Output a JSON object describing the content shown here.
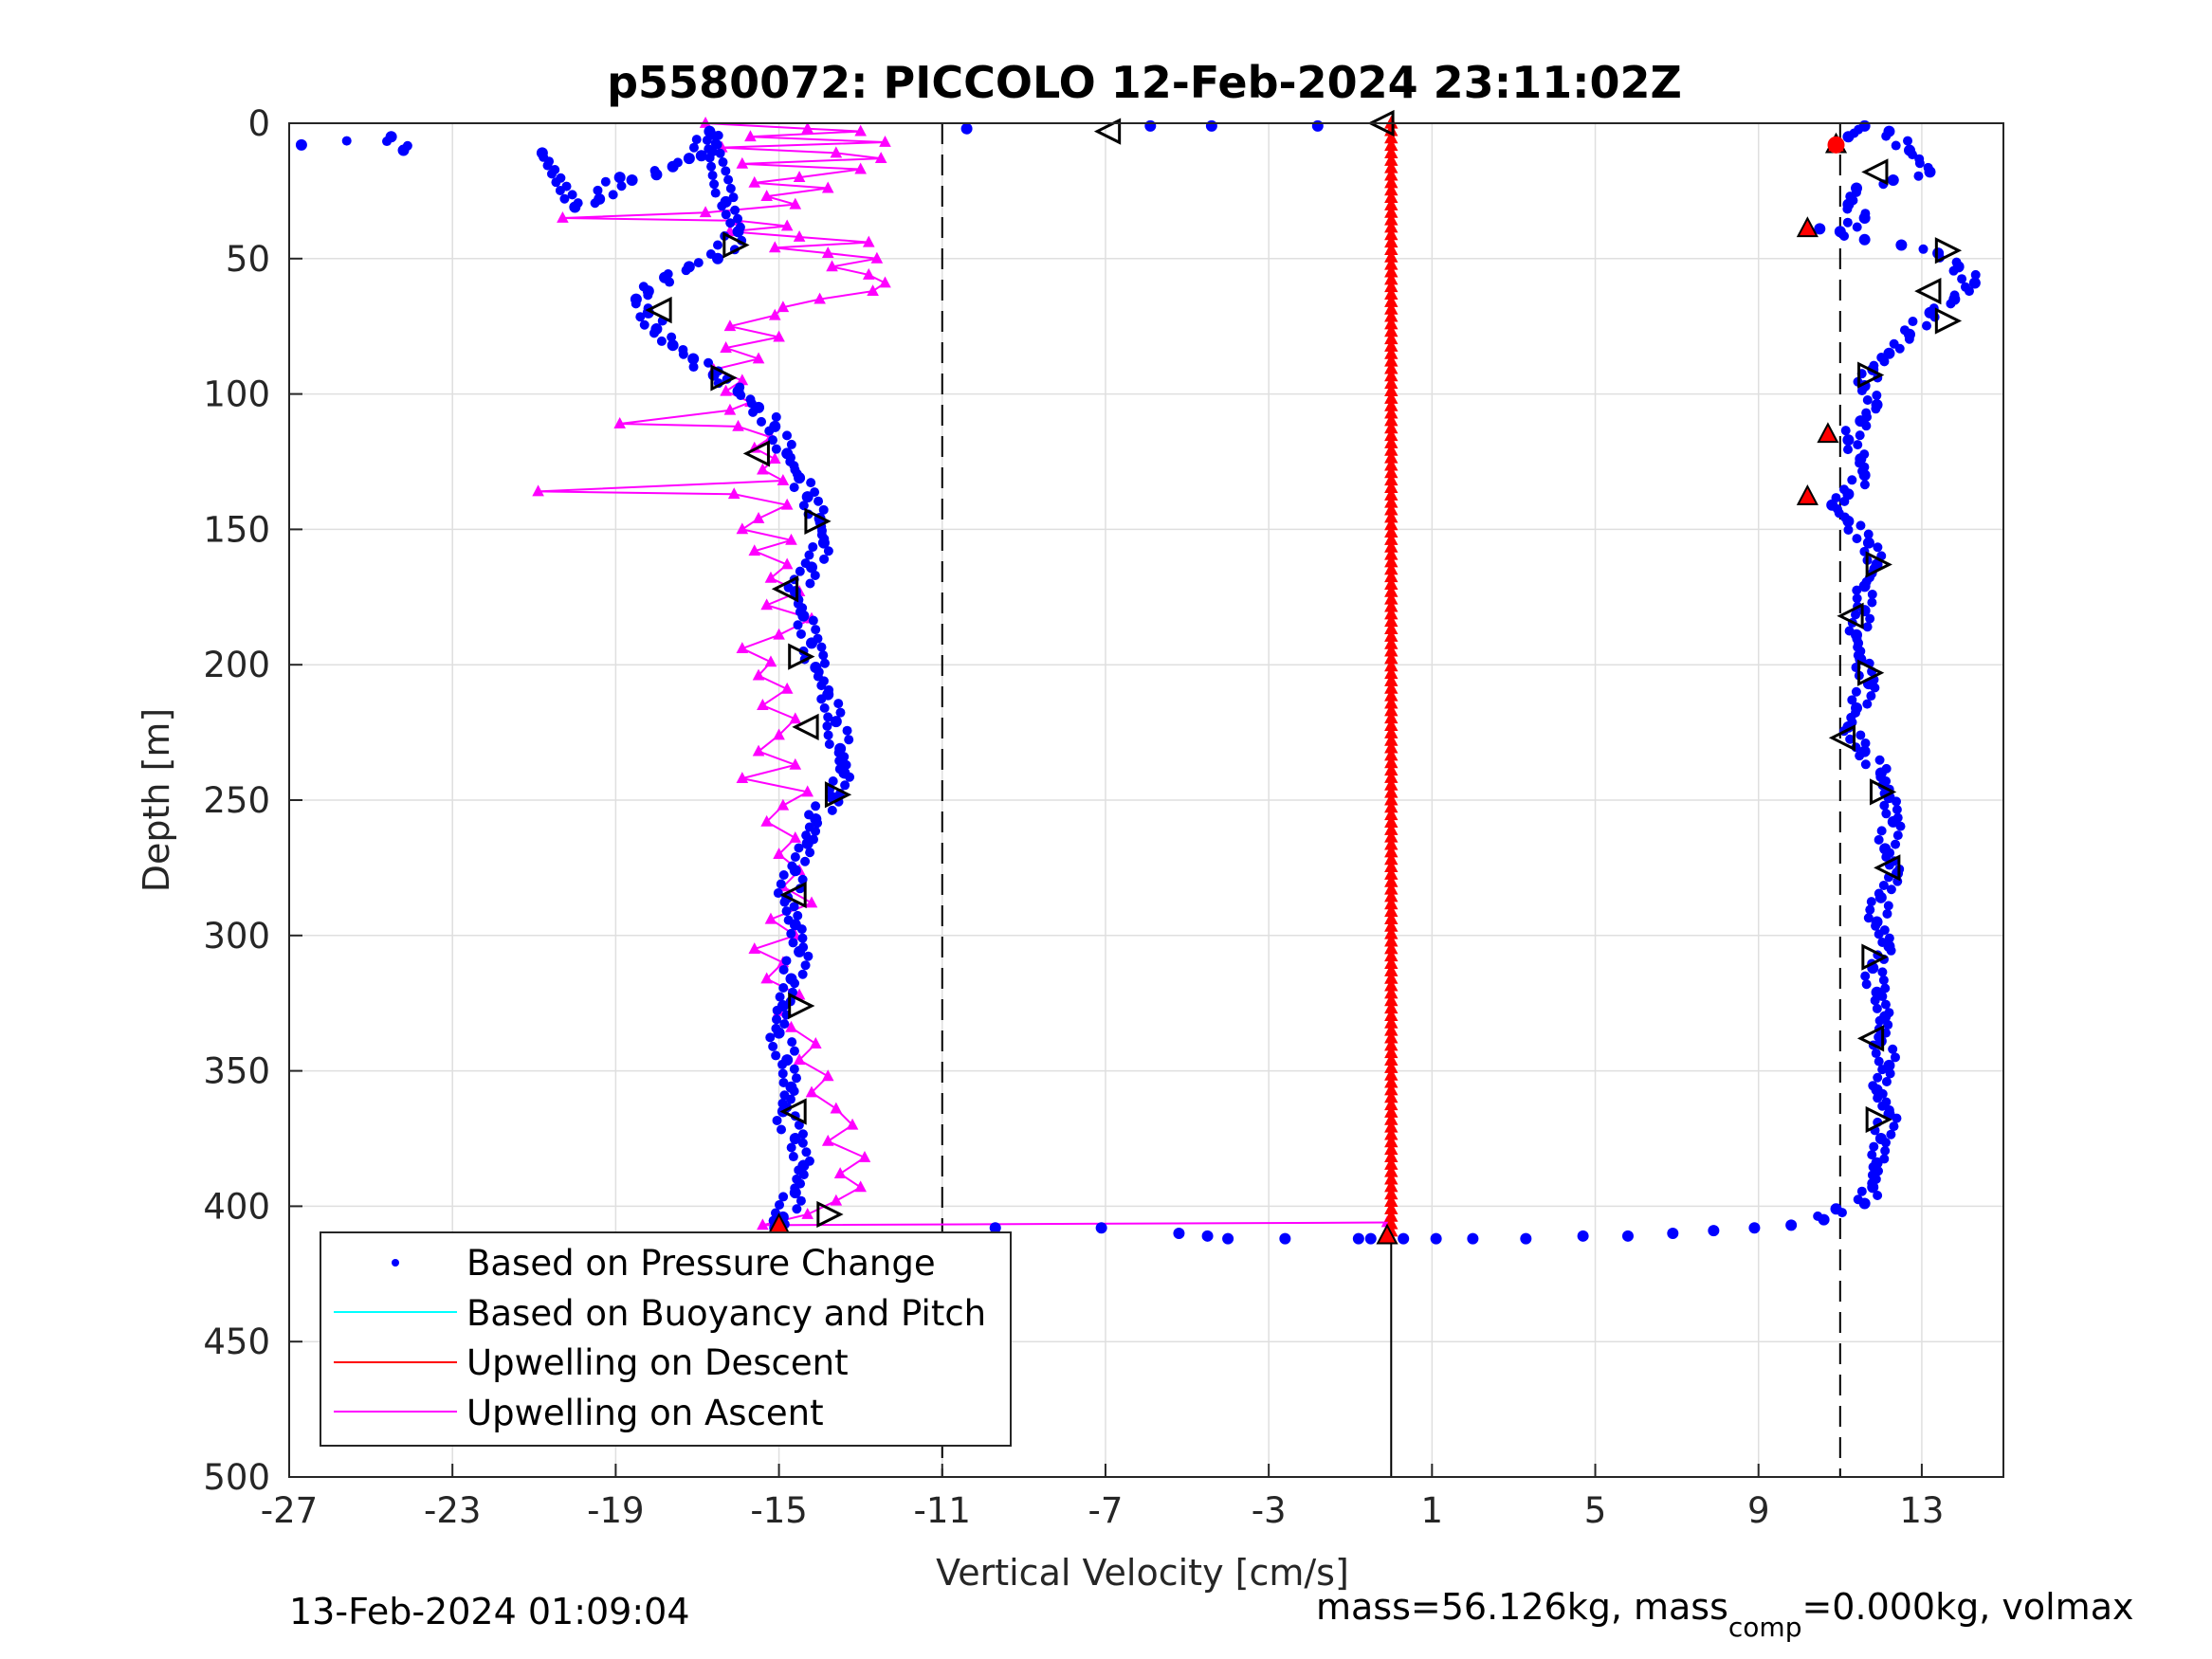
{
  "chart_data": {
    "type": "scatter",
    "title": "p5580072: PICCOLO 12-Feb-2024 23:11:02Z",
    "xlabel": "Vertical Velocity [cm/s]",
    "ylabel": "Depth [m]",
    "xlim": [
      -27,
      15
    ],
    "ylim": [
      0,
      500
    ],
    "y_reversed": true,
    "xticks": [
      "-27",
      "-23",
      "-19",
      "-15",
      "-11",
      "-7",
      "-3",
      "1",
      "5",
      "9",
      "13"
    ],
    "xtick_values": [
      -27,
      -23,
      -19,
      -15,
      -11,
      -7,
      -3,
      1,
      5,
      9,
      13
    ],
    "yticks": [
      "0",
      "50",
      "100",
      "150",
      "200",
      "250",
      "300",
      "350",
      "400",
      "450",
      "500"
    ],
    "ytick_values": [
      0,
      50,
      100,
      150,
      200,
      250,
      300,
      350,
      400,
      450,
      500
    ],
    "grid": true,
    "legend_position": "bottom-left",
    "legend": [
      {
        "label": "Based on Pressure Change",
        "color": "#0000ff",
        "marker": "dot"
      },
      {
        "label": "Based on Buoyancy and Pitch",
        "color": "#00ffff",
        "marker": "line"
      },
      {
        "label": "Upwelling on Descent",
        "color": "#ff0000",
        "marker": "line"
      },
      {
        "label": "Upwelling on Ascent",
        "color": "#ff00ff",
        "marker": "line"
      }
    ],
    "reference_lines": {
      "dashed_x": [
        -11,
        11
      ],
      "solid_x_segment": {
        "x": 0,
        "from_depth": 412,
        "to_depth": 500
      }
    },
    "series": [
      {
        "name": "Based on Pressure Change",
        "color": "#0000ff",
        "descent": [
          [
            -26.7,
            8
          ],
          [
            -24.5,
            5
          ],
          [
            -24.2,
            10
          ],
          [
            -20.8,
            11
          ],
          [
            -20.0,
            31
          ],
          [
            -19.4,
            28
          ],
          [
            -18.9,
            20
          ],
          [
            -18.6,
            21
          ],
          [
            -18.0,
            19
          ],
          [
            -17.6,
            16
          ],
          [
            -17.2,
            13
          ],
          [
            -16.9,
            12
          ],
          [
            -16.7,
            3
          ],
          [
            -16.3,
            29
          ],
          [
            -16.0,
            40
          ],
          [
            -16.5,
            50
          ],
          [
            -17.2,
            53
          ],
          [
            -17.8,
            57
          ],
          [
            -18.2,
            62
          ],
          [
            -18.5,
            65
          ],
          [
            -18.2,
            70
          ],
          [
            -18.0,
            76
          ],
          [
            -17.6,
            82
          ],
          [
            -17.1,
            87
          ],
          [
            -16.6,
            93
          ],
          [
            -16.0,
            99
          ],
          [
            -15.5,
            105
          ],
          [
            -15.1,
            112
          ],
          [
            -14.8,
            122
          ],
          [
            -14.5,
            131
          ],
          [
            -14.3,
            138
          ],
          [
            -14.0,
            146
          ],
          [
            -13.9,
            155
          ],
          [
            -14.2,
            164
          ],
          [
            -14.6,
            173
          ],
          [
            -14.4,
            182
          ],
          [
            -14.2,
            192
          ],
          [
            -14.1,
            201
          ],
          [
            -13.8,
            211
          ],
          [
            -13.6,
            221
          ],
          [
            -13.5,
            231
          ],
          [
            -13.4,
            240
          ],
          [
            -13.7,
            249
          ],
          [
            -14.1,
            257
          ],
          [
            -14.3,
            266
          ],
          [
            -14.6,
            276
          ],
          [
            -14.8,
            286
          ],
          [
            -14.6,
            296
          ],
          [
            -14.5,
            306
          ],
          [
            -14.7,
            316
          ],
          [
            -14.9,
            326
          ],
          [
            -15.0,
            336
          ],
          [
            -14.8,
            346
          ],
          [
            -14.7,
            356
          ],
          [
            -14.9,
            365
          ],
          [
            -14.6,
            375
          ],
          [
            -14.4,
            385
          ],
          [
            -14.6,
            395
          ],
          [
            -14.9,
            404
          ],
          [
            -15.1,
            408
          ],
          [
            -10.4,
            2
          ],
          [
            -5.9,
            1
          ],
          [
            -4.4,
            1
          ],
          [
            -1.8,
            1
          ],
          [
            -9.7,
            408
          ],
          [
            -7.1,
            408
          ],
          [
            -5.2,
            410
          ],
          [
            -4.5,
            411
          ],
          [
            -4.0,
            412
          ],
          [
            -2.6,
            412
          ],
          [
            -0.8,
            412
          ],
          [
            -0.5,
            412
          ],
          [
            0.3,
            412
          ],
          [
            1.1,
            412
          ],
          [
            2.0,
            412
          ],
          [
            3.3,
            412
          ],
          [
            4.7,
            411
          ],
          [
            5.8,
            411
          ],
          [
            6.9,
            410
          ],
          [
            7.9,
            409
          ],
          [
            8.9,
            408
          ],
          [
            9.8,
            407
          ],
          [
            10.6,
            405
          ],
          [
            10.9,
            401
          ]
        ],
        "ascent": [
          [
            11.2,
            5
          ],
          [
            11.6,
            1
          ],
          [
            12.2,
            3
          ],
          [
            12.7,
            10
          ],
          [
            13.2,
            18
          ],
          [
            12.3,
            21
          ],
          [
            11.4,
            24
          ],
          [
            11.2,
            30
          ],
          [
            11.6,
            35
          ],
          [
            11.0,
            40
          ],
          [
            10.5,
            39
          ],
          [
            11.6,
            43
          ],
          [
            12.5,
            45
          ],
          [
            13.4,
            48
          ],
          [
            13.9,
            53
          ],
          [
            14.3,
            59
          ],
          [
            13.8,
            65
          ],
          [
            13.2,
            70
          ],
          [
            12.7,
            78
          ],
          [
            12.2,
            85
          ],
          [
            11.8,
            91
          ],
          [
            11.6,
            97
          ],
          [
            11.9,
            104
          ],
          [
            11.5,
            110
          ],
          [
            11.2,
            117
          ],
          [
            11.5,
            124
          ],
          [
            11.6,
            130
          ],
          [
            11.2,
            137
          ],
          [
            10.8,
            141
          ],
          [
            11.2,
            147
          ],
          [
            11.7,
            155
          ],
          [
            11.9,
            163
          ],
          [
            11.6,
            171
          ],
          [
            11.6,
            180
          ],
          [
            11.4,
            189
          ],
          [
            11.5,
            198
          ],
          [
            11.7,
            207
          ],
          [
            11.4,
            216
          ],
          [
            11.2,
            223
          ],
          [
            11.6,
            232
          ],
          [
            12.0,
            240
          ],
          [
            12.2,
            249
          ],
          [
            12.3,
            258
          ],
          [
            12.1,
            268
          ],
          [
            12.4,
            277
          ],
          [
            12.0,
            286
          ],
          [
            11.9,
            295
          ],
          [
            12.2,
            304
          ],
          [
            11.8,
            312
          ],
          [
            11.9,
            321
          ],
          [
            12.1,
            330
          ],
          [
            12.0,
            339
          ],
          [
            12.2,
            348
          ],
          [
            11.9,
            357
          ],
          [
            12.2,
            366
          ],
          [
            12.0,
            375
          ],
          [
            11.9,
            384
          ],
          [
            11.8,
            393
          ],
          [
            11.6,
            399
          ]
        ]
      },
      {
        "name": "Upwelling on Descent",
        "color": "#ff0000",
        "marker": "triangle",
        "x": 0,
        "depth_from": 0,
        "depth_to": 412,
        "points": [
          [
            10.9,
            8
          ],
          [
            10.2,
            39
          ],
          [
            10.7,
            115
          ],
          [
            10.2,
            138
          ],
          [
            -15.0,
            407
          ],
          [
            -0.1,
            411
          ]
        ]
      },
      {
        "name": "Upwelling on Ascent",
        "color": "#ff00ff",
        "marker": "triangle",
        "profile": [
          [
            -16.8,
            0
          ],
          [
            -14.3,
            2
          ],
          [
            -13.0,
            3
          ],
          [
            -15.7,
            5
          ],
          [
            -12.4,
            7
          ],
          [
            -16.4,
            9
          ],
          [
            -13.6,
            11
          ],
          [
            -12.5,
            13
          ],
          [
            -15.9,
            15
          ],
          [
            -13.0,
            17
          ],
          [
            -14.5,
            20
          ],
          [
            -15.6,
            22
          ],
          [
            -13.8,
            24
          ],
          [
            -15.3,
            27
          ],
          [
            -14.6,
            30
          ],
          [
            -16.8,
            33
          ],
          [
            -20.3,
            35
          ],
          [
            -16.0,
            36
          ],
          [
            -14.8,
            38
          ],
          [
            -16.2,
            40
          ],
          [
            -14.5,
            42
          ],
          [
            -12.8,
            44
          ],
          [
            -15.1,
            46
          ],
          [
            -13.8,
            48
          ],
          [
            -12.6,
            50
          ],
          [
            -13.7,
            53
          ],
          [
            -12.8,
            56
          ],
          [
            -12.4,
            59
          ],
          [
            -12.7,
            62
          ],
          [
            -14.0,
            65
          ],
          [
            -14.9,
            68
          ],
          [
            -15.1,
            71
          ],
          [
            -16.2,
            75
          ],
          [
            -15.0,
            79
          ],
          [
            -16.3,
            83
          ],
          [
            -15.5,
            87
          ],
          [
            -16.6,
            91
          ],
          [
            -15.9,
            95
          ],
          [
            -16.3,
            99
          ],
          [
            -15.7,
            103
          ],
          [
            -16.2,
            106
          ],
          [
            -18.9,
            111
          ],
          [
            -16.0,
            112
          ],
          [
            -15.2,
            116
          ],
          [
            -15.6,
            120
          ],
          [
            -15.1,
            124
          ],
          [
            -15.4,
            128
          ],
          [
            -14.9,
            132
          ],
          [
            -20.9,
            136
          ],
          [
            -16.1,
            137
          ],
          [
            -14.8,
            141
          ],
          [
            -15.5,
            146
          ],
          [
            -15.9,
            150
          ],
          [
            -14.7,
            154
          ],
          [
            -15.6,
            158
          ],
          [
            -14.8,
            163
          ],
          [
            -15.2,
            168
          ],
          [
            -14.5,
            173
          ],
          [
            -15.3,
            178
          ],
          [
            -14.2,
            183
          ],
          [
            -15.0,
            189
          ],
          [
            -15.9,
            194
          ],
          [
            -15.2,
            199
          ],
          [
            -15.5,
            204
          ],
          [
            -14.8,
            209
          ],
          [
            -15.4,
            215
          ],
          [
            -14.6,
            220
          ],
          [
            -15.0,
            226
          ],
          [
            -15.5,
            232
          ],
          [
            -14.6,
            237
          ],
          [
            -15.9,
            242
          ],
          [
            -14.3,
            247
          ],
          [
            -14.9,
            252
          ],
          [
            -15.3,
            258
          ],
          [
            -14.6,
            264
          ],
          [
            -15.0,
            270
          ],
          [
            -14.5,
            276
          ],
          [
            -14.9,
            282
          ],
          [
            -14.2,
            288
          ],
          [
            -15.2,
            294
          ],
          [
            -14.6,
            300
          ],
          [
            -15.6,
            305
          ],
          [
            -14.9,
            310
          ],
          [
            -15.3,
            316
          ],
          [
            -14.5,
            322
          ],
          [
            -15.0,
            328
          ],
          [
            -14.7,
            334
          ],
          [
            -14.1,
            340
          ],
          [
            -14.5,
            346
          ],
          [
            -13.8,
            352
          ],
          [
            -14.2,
            358
          ],
          [
            -13.6,
            364
          ],
          [
            -13.2,
            370
          ],
          [
            -13.8,
            376
          ],
          [
            -12.9,
            382
          ],
          [
            -13.5,
            388
          ],
          [
            -13.0,
            393
          ],
          [
            -13.6,
            398
          ],
          [
            -14.3,
            403
          ],
          [
            -15.4,
            407
          ],
          [
            -0.1,
            406
          ]
        ]
      },
      {
        "name": "Based on Buoyancy and Pitch",
        "color": "#00ffff",
        "points": []
      }
    ],
    "open_triangles": [
      [
        -0.2,
        0,
        "left"
      ],
      [
        -6.9,
        3,
        "left"
      ],
      [
        11.9,
        18,
        "left"
      ],
      [
        13.6,
        47,
        "right"
      ],
      [
        13.2,
        62,
        "left"
      ],
      [
        13.6,
        73,
        "right"
      ],
      [
        11.7,
        93,
        "right"
      ],
      [
        -16.1,
        45,
        "right"
      ],
      [
        -17.9,
        69,
        "left"
      ],
      [
        -16.4,
        94,
        "right"
      ],
      [
        -15.5,
        122,
        "left"
      ],
      [
        -14.1,
        147,
        "right"
      ],
      [
        -14.8,
        172,
        "left"
      ],
      [
        -14.5,
        197,
        "right"
      ],
      [
        -14.3,
        223,
        "left"
      ],
      [
        -13.6,
        248,
        "right"
      ],
      [
        -14.6,
        285,
        "left"
      ],
      [
        -14.5,
        326,
        "right"
      ],
      [
        -14.6,
        365,
        "left"
      ],
      [
        -13.8,
        403,
        "right"
      ],
      [
        11.9,
        163,
        "right"
      ],
      [
        11.3,
        182,
        "left"
      ],
      [
        11.7,
        203,
        "right"
      ],
      [
        11.1,
        227,
        "left"
      ],
      [
        12.0,
        247,
        "right"
      ],
      [
        12.2,
        275,
        "left"
      ],
      [
        11.8,
        308,
        "right"
      ],
      [
        11.8,
        338,
        "left"
      ],
      [
        11.9,
        368,
        "right"
      ]
    ]
  },
  "footer": {
    "timestamp": "13-Feb-2024 01:09:04",
    "mass_left": "mass=56.126kg, mass",
    "mass_sub": "comp",
    "mass_right": "=0.000kg, volmax"
  }
}
